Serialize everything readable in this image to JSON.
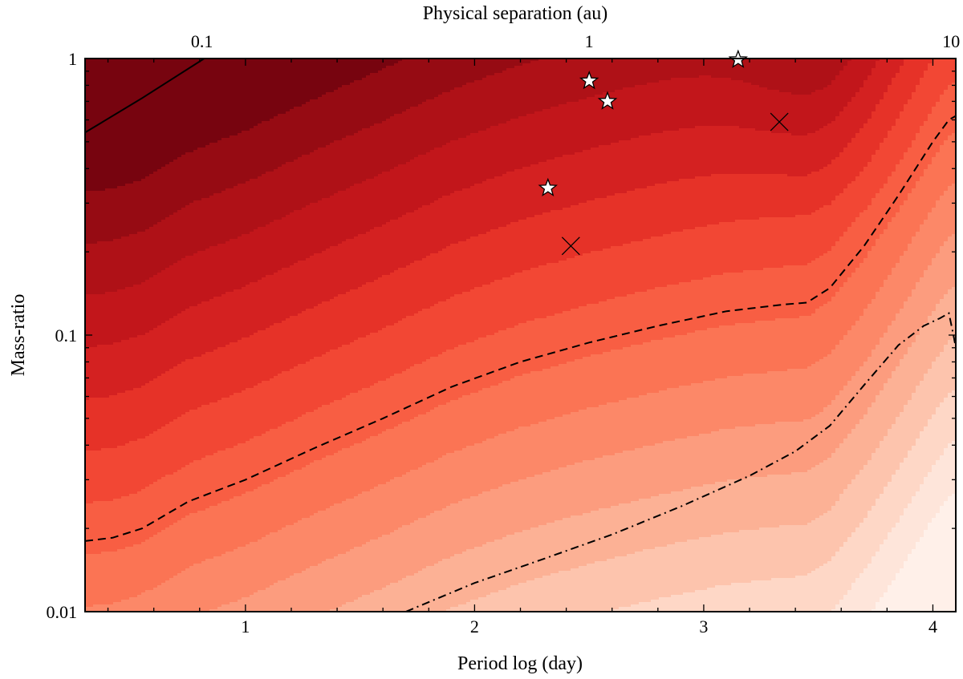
{
  "chart_data": {
    "type": "heatmap",
    "title": "",
    "xlabel": "Period log (day)",
    "ylabel": "Mass-ratio",
    "x2label": "Physical separation (au)",
    "xlim": [
      0.3,
      4.1
    ],
    "ylim": [
      0.01,
      1
    ],
    "yscale": "log",
    "grid": false,
    "x_ticks": [
      1,
      2,
      3,
      4
    ],
    "x_tick_labels": [
      "1",
      "2",
      "3",
      "4"
    ],
    "y_ticks": [
      0.01,
      0.1,
      1
    ],
    "y_tick_labels": [
      "0.01",
      "0.1",
      "1"
    ],
    "x2_ticks": [
      0.1,
      1,
      10
    ],
    "x2_tick_labels": [
      "0.1",
      "1",
      "10"
    ],
    "x2_tick_positions_logP": [
      0.81,
      2.5,
      4.08
    ],
    "colormap": [
      "#fff5f0",
      "#fee0d2",
      "#fcbba1",
      "#fc9272",
      "#fb6a4a",
      "#ef3b2c",
      "#cb181d",
      "#a50f15",
      "#67000d"
    ],
    "contour_levels": 16,
    "contours": [
      {
        "style": "solid",
        "x": [
          0.3,
          0.55,
          0.82
        ],
        "y": [
          0.54,
          0.72,
          1.0
        ]
      },
      {
        "style": "dashed",
        "x": [
          0.3,
          0.42,
          0.55,
          0.75,
          1.0,
          1.3,
          1.6,
          1.9,
          2.2,
          2.5,
          2.8,
          3.1,
          3.35,
          3.45,
          3.55,
          3.7,
          3.85,
          4.0,
          4.07,
          4.1
        ],
        "y": [
          0.018,
          0.0185,
          0.02,
          0.025,
          0.03,
          0.039,
          0.05,
          0.065,
          0.08,
          0.094,
          0.108,
          0.122,
          0.129,
          0.131,
          0.148,
          0.21,
          0.32,
          0.5,
          0.6,
          0.62
        ]
      },
      {
        "style": "dashdot",
        "x": [
          1.7,
          2.0,
          2.3,
          2.6,
          2.9,
          3.2,
          3.4,
          3.55,
          3.7,
          3.85,
          3.96,
          4.03,
          4.07,
          4.09,
          4.1
        ],
        "y": [
          0.01,
          0.0127,
          0.0155,
          0.019,
          0.024,
          0.031,
          0.038,
          0.047,
          0.066,
          0.092,
          0.108,
          0.115,
          0.12,
          0.1,
          0.09
        ]
      }
    ],
    "points": [
      {
        "marker": "star",
        "x": 2.32,
        "y": 0.34
      },
      {
        "marker": "star",
        "x": 2.5,
        "y": 0.83
      },
      {
        "marker": "star",
        "x": 2.58,
        "y": 0.7
      },
      {
        "marker": "star",
        "x": 3.15,
        "y": 0.99
      },
      {
        "marker": "cross",
        "x": 2.42,
        "y": 0.21
      },
      {
        "marker": "cross",
        "x": 3.33,
        "y": 0.59
      }
    ]
  }
}
